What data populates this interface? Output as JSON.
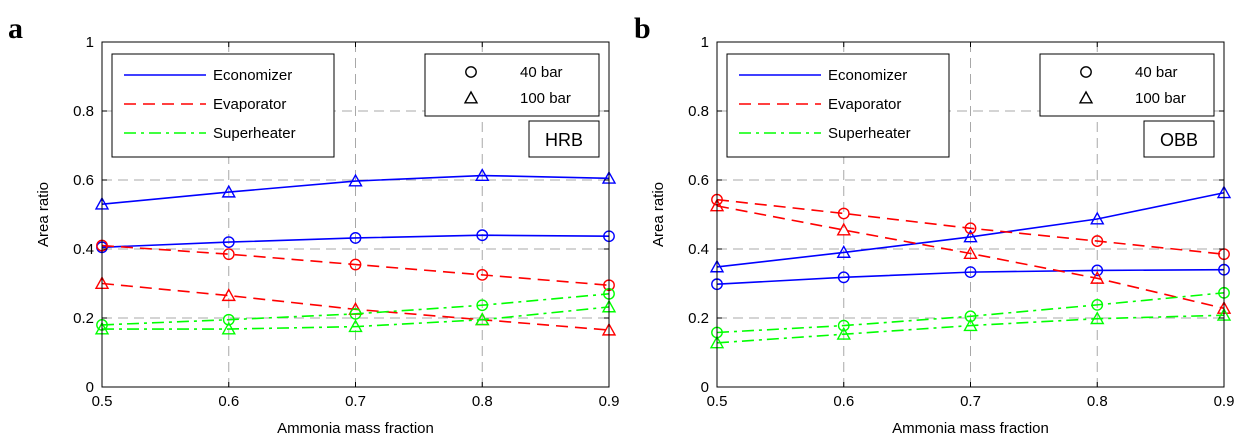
{
  "chart_data": [
    {
      "type": "line",
      "panel_label": "a",
      "tag": "HRB",
      "xlabel": "Ammonia mass fraction",
      "ylabel": "Area ratio",
      "xlim": [
        0.5,
        0.9
      ],
      "ylim": [
        0,
        1
      ],
      "xticks": [
        "0.5",
        "0.6",
        "0.7",
        "0.8",
        "0.9"
      ],
      "yticks": [
        "0",
        "0.2",
        "0.4",
        "0.6",
        "0.8",
        "1"
      ],
      "grid": true,
      "x": [
        0.5,
        0.6,
        0.7,
        0.8,
        0.9
      ],
      "legend_components": [
        {
          "name": "Economizer",
          "color": "#0000ff",
          "dash": "solid"
        },
        {
          "name": "Evaporator",
          "color": "#ff0000",
          "dash": "dashed"
        },
        {
          "name": "Superheater",
          "color": "#00ff00",
          "dash": "dashdot"
        }
      ],
      "legend_pressures": [
        {
          "name": "40 bar",
          "marker": "circle"
        },
        {
          "name": "100 bar",
          "marker": "triangle"
        }
      ],
      "series": [
        {
          "component": "Economizer",
          "pressure": "40 bar",
          "color": "#0000ff",
          "dash": "solid",
          "marker": "circle",
          "values": [
            0.405,
            0.42,
            0.432,
            0.44,
            0.437
          ]
        },
        {
          "component": "Economizer",
          "pressure": "100 bar",
          "color": "#0000ff",
          "dash": "solid",
          "marker": "triangle",
          "values": [
            0.53,
            0.565,
            0.597,
            0.613,
            0.605
          ]
        },
        {
          "component": "Evaporator",
          "pressure": "40 bar",
          "color": "#ff0000",
          "dash": "dashed",
          "marker": "circle",
          "values": [
            0.41,
            0.385,
            0.355,
            0.325,
            0.295
          ]
        },
        {
          "component": "Evaporator",
          "pressure": "100 bar",
          "color": "#ff0000",
          "dash": "dashed",
          "marker": "triangle",
          "values": [
            0.3,
            0.265,
            0.225,
            0.195,
            0.165
          ]
        },
        {
          "component": "Superheater",
          "pressure": "40 bar",
          "color": "#00ff00",
          "dash": "dashdot",
          "marker": "circle",
          "values": [
            0.18,
            0.195,
            0.212,
            0.237,
            0.27
          ]
        },
        {
          "component": "Superheater",
          "pressure": "100 bar",
          "color": "#00ff00",
          "dash": "dashdot",
          "marker": "triangle",
          "values": [
            0.168,
            0.168,
            0.175,
            0.195,
            0.232
          ]
        }
      ]
    },
    {
      "type": "line",
      "panel_label": "b",
      "tag": "OBB",
      "xlabel": "Ammonia mass fraction",
      "ylabel": "Area ratio",
      "xlim": [
        0.5,
        0.9
      ],
      "ylim": [
        0,
        1
      ],
      "xticks": [
        "0.5",
        "0.6",
        "0.7",
        "0.8",
        "0.9"
      ],
      "yticks": [
        "0",
        "0.2",
        "0.4",
        "0.6",
        "0.8",
        "1"
      ],
      "grid": true,
      "x": [
        0.5,
        0.6,
        0.7,
        0.8,
        0.9
      ],
      "legend_components": [
        {
          "name": "Economizer",
          "color": "#0000ff",
          "dash": "solid"
        },
        {
          "name": "Evaporator",
          "color": "#ff0000",
          "dash": "dashed"
        },
        {
          "name": "Superheater",
          "color": "#00ff00",
          "dash": "dashdot"
        }
      ],
      "legend_pressures": [
        {
          "name": "40 bar",
          "marker": "circle"
        },
        {
          "name": "100 bar",
          "marker": "triangle"
        }
      ],
      "series": [
        {
          "component": "Economizer",
          "pressure": "40 bar",
          "color": "#0000ff",
          "dash": "solid",
          "marker": "circle",
          "values": [
            0.298,
            0.318,
            0.333,
            0.338,
            0.34
          ]
        },
        {
          "component": "Economizer",
          "pressure": "100 bar",
          "color": "#0000ff",
          "dash": "solid",
          "marker": "triangle",
          "values": [
            0.348,
            0.39,
            0.435,
            0.487,
            0.563
          ]
        },
        {
          "component": "Evaporator",
          "pressure": "40 bar",
          "color": "#ff0000",
          "dash": "dashed",
          "marker": "circle",
          "values": [
            0.543,
            0.503,
            0.46,
            0.423,
            0.385
          ]
        },
        {
          "component": "Evaporator",
          "pressure": "100 bar",
          "color": "#ff0000",
          "dash": "dashed",
          "marker": "triangle",
          "values": [
            0.525,
            0.455,
            0.387,
            0.315,
            0.228
          ]
        },
        {
          "component": "Superheater",
          "pressure": "40 bar",
          "color": "#00ff00",
          "dash": "dashdot",
          "marker": "circle",
          "values": [
            0.158,
            0.178,
            0.205,
            0.238,
            0.273
          ]
        },
        {
          "component": "Superheater",
          "pressure": "100 bar",
          "color": "#00ff00",
          "dash": "dashdot",
          "marker": "triangle",
          "values": [
            0.128,
            0.153,
            0.178,
            0.198,
            0.208
          ]
        }
      ]
    }
  ]
}
